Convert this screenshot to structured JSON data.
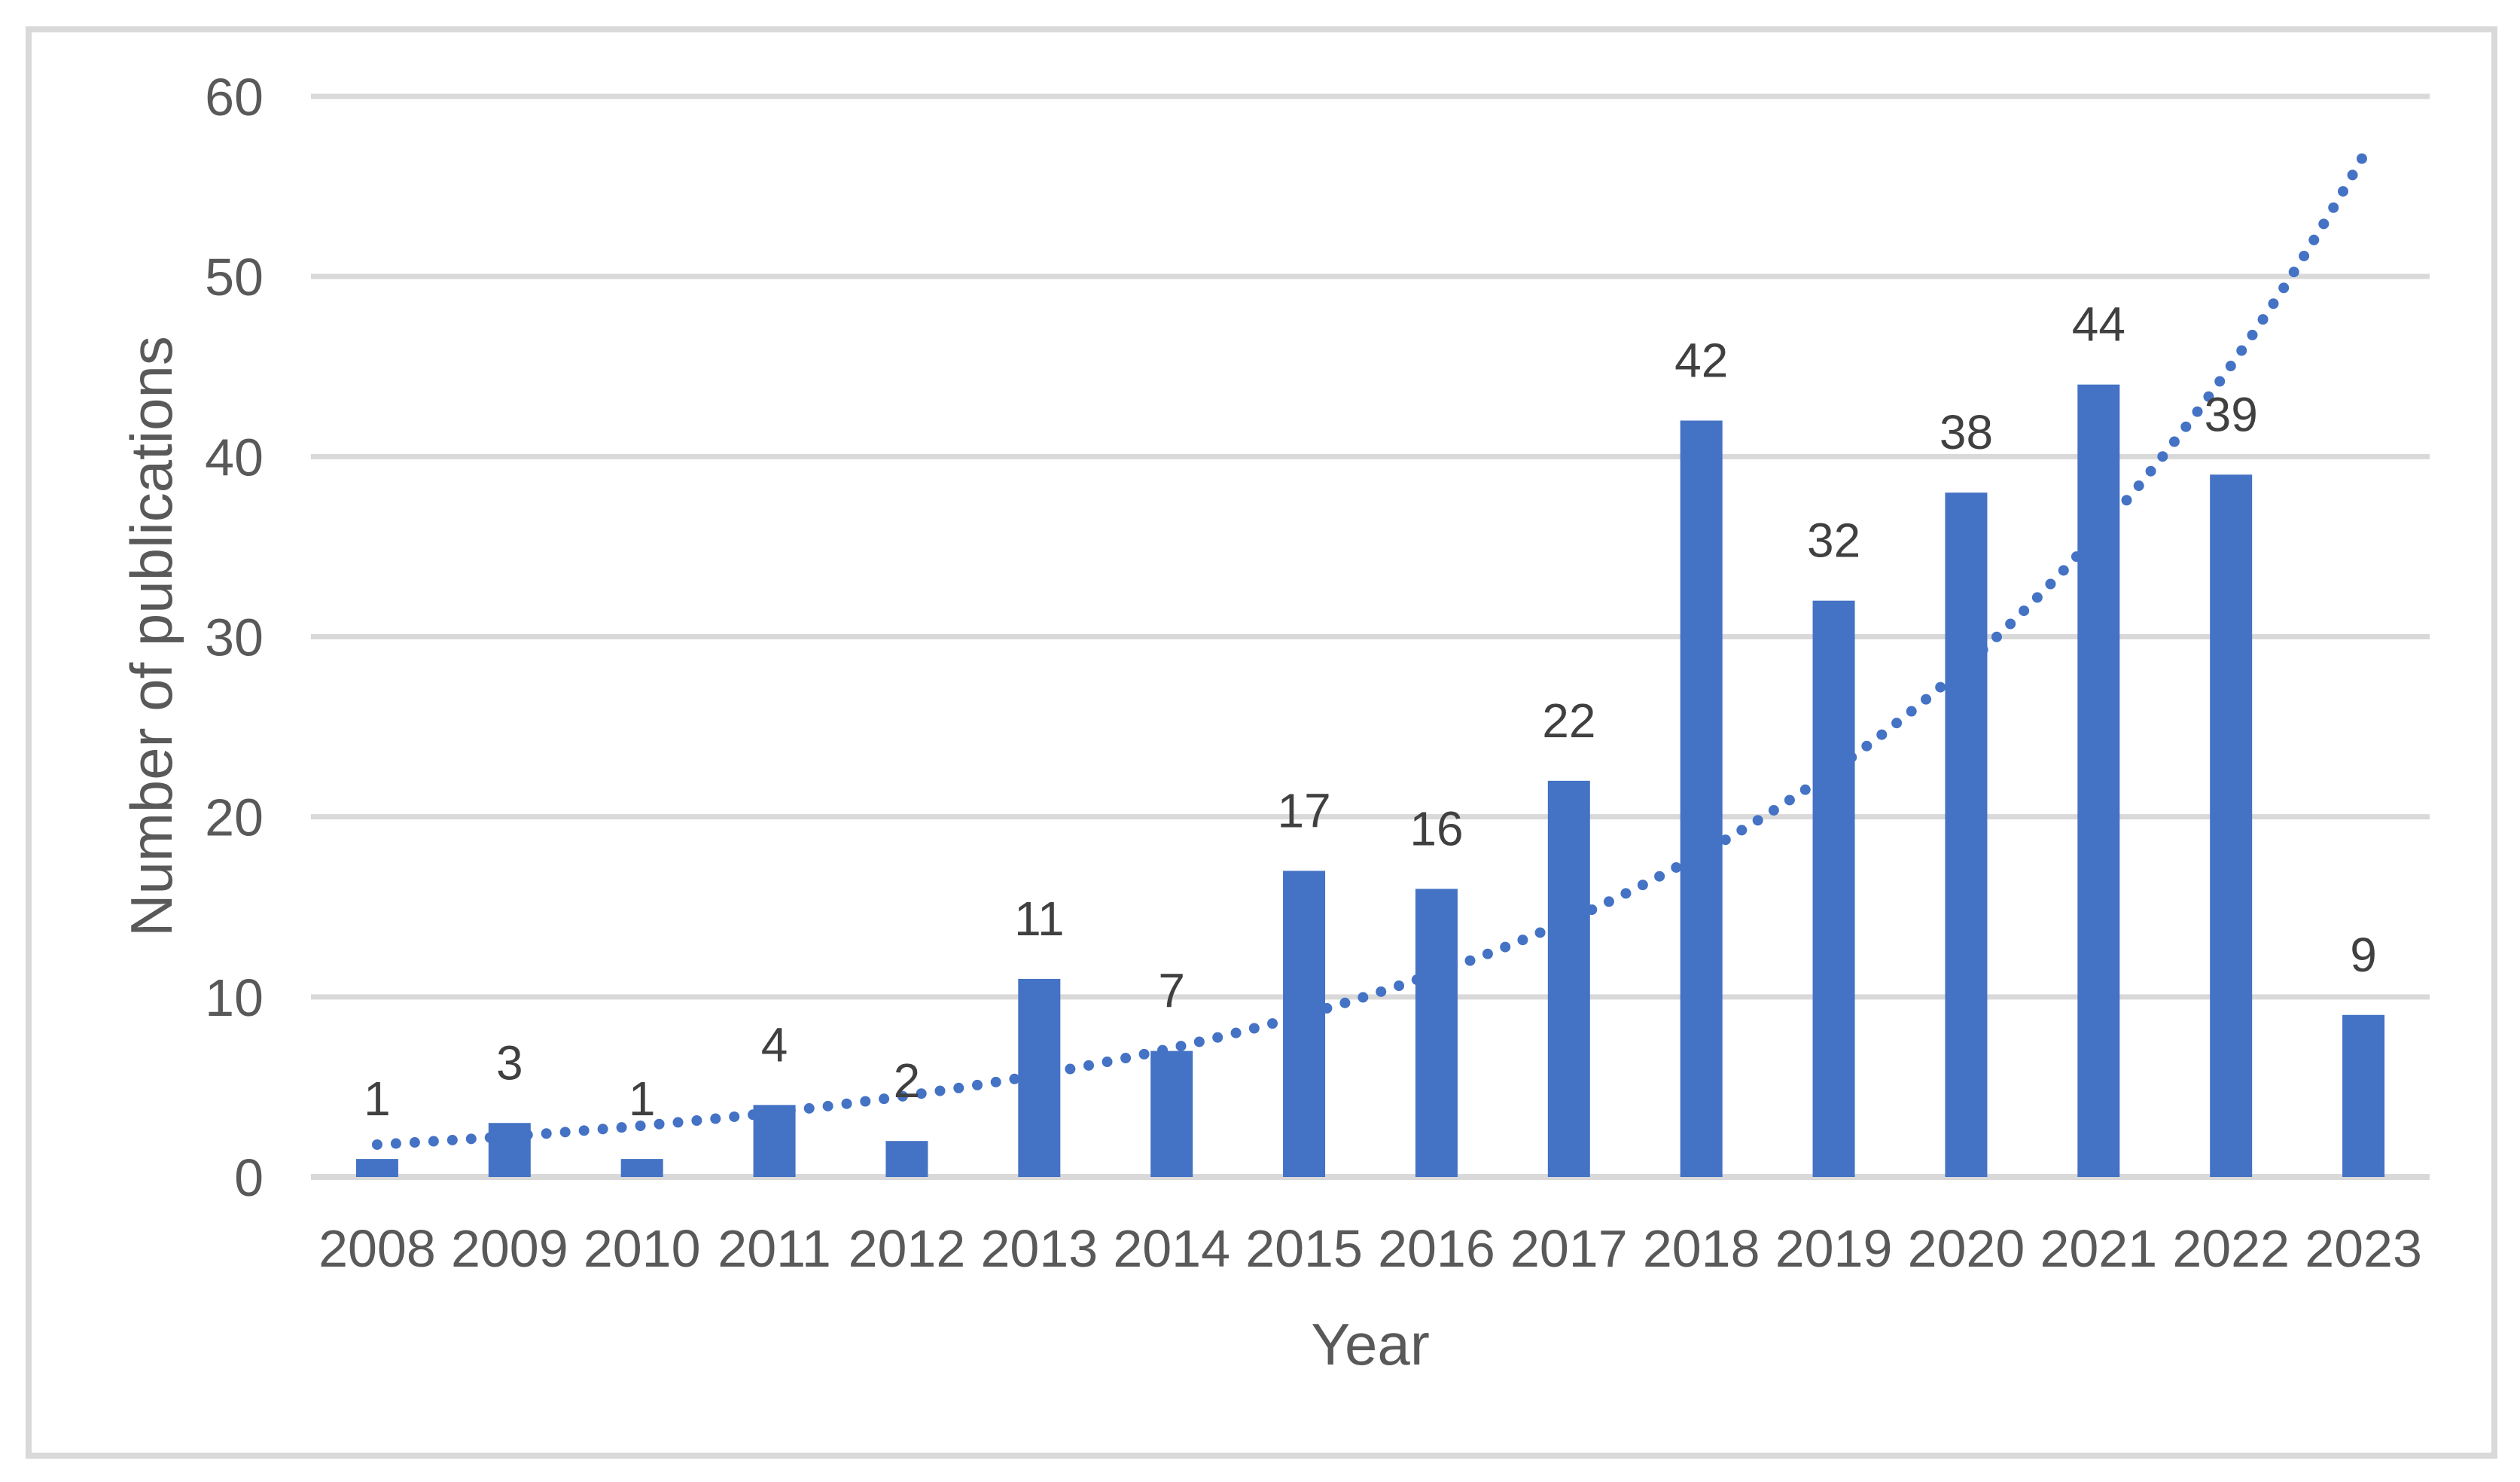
{
  "chart_data": {
    "type": "bar",
    "title": "",
    "categories": [
      "2008",
      "2009",
      "2010",
      "2011",
      "2012",
      "2013",
      "2014",
      "2015",
      "2016",
      "2017",
      "2018",
      "2019",
      "2020",
      "2021",
      "2022",
      "2023"
    ],
    "values": [
      1,
      3,
      1,
      4,
      2,
      11,
      7,
      17,
      16,
      22,
      42,
      32,
      38,
      44,
      39,
      9
    ],
    "xlabel": "Year",
    "ylabel": "Number of publications",
    "ylim": [
      0,
      60
    ],
    "yticks": [
      0,
      10,
      20,
      30,
      40,
      50,
      60
    ],
    "grid": "horizontal",
    "legend_position": "none",
    "bar_color": "#4472C4",
    "data_label_color": "#404040",
    "axis_text_color": "#595959",
    "gridline_color": "#D9D9D9",
    "axis_line_color": "#D9D9D9",
    "figure_border_color": "#D9D9D9",
    "background_color": "#FFFFFF",
    "trendline": {
      "type": "exponential",
      "style": "dotted",
      "color": "#4472C4",
      "equation": "y = 1.8 * exp(0.23 * t), t = years since 2008",
      "a": 1.8,
      "b": 0.23,
      "t_start": 0,
      "t_end": 15
    }
  }
}
